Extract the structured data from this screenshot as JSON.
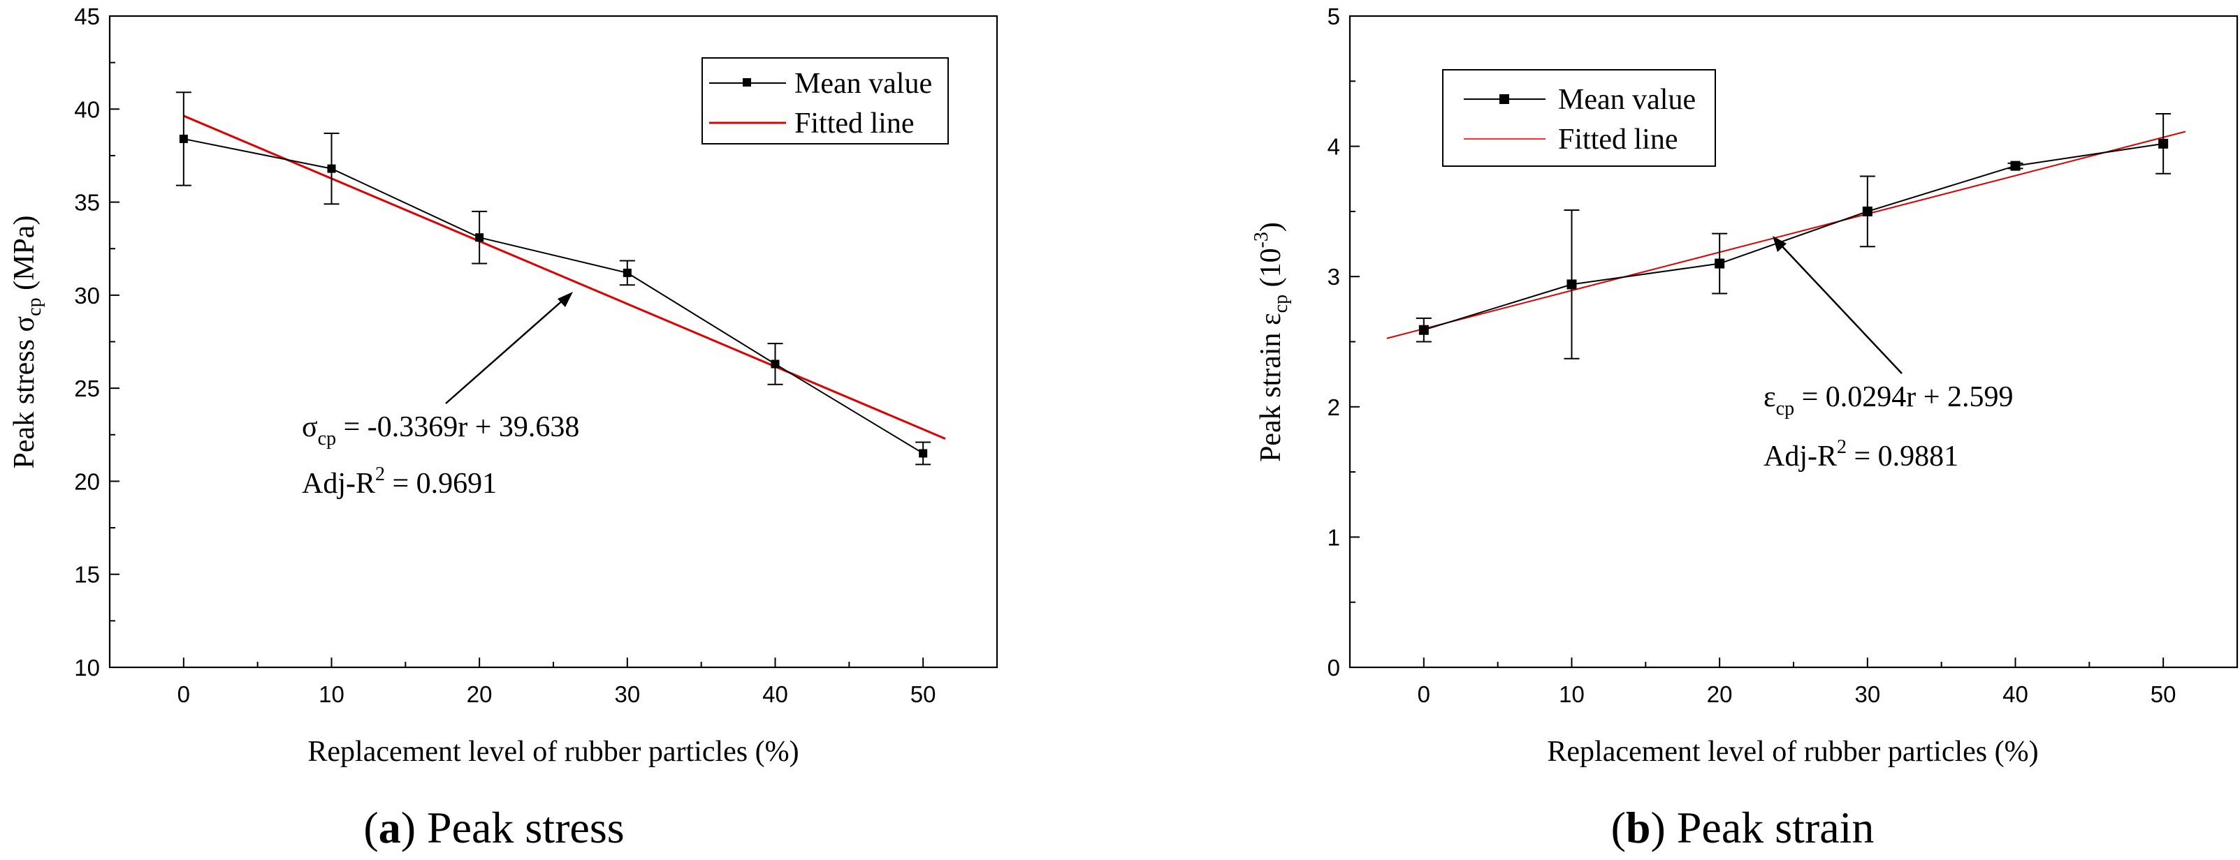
{
  "chart_data": [
    {
      "type": "line",
      "id": "a",
      "caption_letter": "a",
      "caption_text": "Peak stress",
      "xlabel": "Replacement level of rubber particles (%)",
      "ylabel_prefix": "Peak stress σ",
      "ylabel_sub": "cp",
      "ylabel_suffix": " (MPa)",
      "xlim": [
        -5,
        55
      ],
      "ylim": [
        10,
        45
      ],
      "x_ticks": [
        0,
        10,
        20,
        30,
        40,
        50
      ],
      "y_ticks": [
        10,
        15,
        20,
        25,
        30,
        35,
        40,
        45
      ],
      "legend": [
        "Mean value",
        "Fitted line"
      ],
      "series": [
        {
          "name": "Mean value",
          "x": [
            0,
            10,
            20,
            30,
            40,
            50
          ],
          "y": [
            38.4,
            36.8,
            33.1,
            31.2,
            26.3,
            21.5
          ],
          "err": [
            2.5,
            1.9,
            1.4,
            0.65,
            1.1,
            0.6
          ]
        }
      ],
      "fit": {
        "slope": -0.3369,
        "intercept": 39.638,
        "x_range": [
          0,
          51.5
        ],
        "color": "#e00000"
      },
      "equation": {
        "lhs": "σ",
        "sub": "cp",
        "rhs": " = -0.3369r + 39.638",
        "r2_prefix": "Adj-R",
        "r2_sup": "2",
        "r2_value": " = 0.9691"
      }
    },
    {
      "type": "line",
      "id": "b",
      "caption_letter": "b",
      "caption_text": "Peak strain",
      "xlabel": "Replacement level of rubber particles (%)",
      "ylabel_prefix": "Peak strain ε",
      "ylabel_sub": "cp",
      "ylabel_suffix": "  (10",
      "ylabel_sup": "-3",
      "ylabel_end": ")",
      "xlim": [
        -5,
        55
      ],
      "ylim": [
        0,
        5
      ],
      "x_ticks": [
        0,
        10,
        20,
        30,
        40,
        50
      ],
      "y_ticks": [
        0,
        1,
        2,
        3,
        4,
        5
      ],
      "legend": [
        "Mean value",
        "Fitted line"
      ],
      "series": [
        {
          "name": "Mean value",
          "x": [
            0,
            10,
            20,
            30,
            40,
            50
          ],
          "y": [
            2.59,
            2.94,
            3.1,
            3.5,
            3.85,
            4.02
          ],
          "err": [
            0.09,
            0.57,
            0.23,
            0.27,
            0.02,
            0.23
          ]
        }
      ],
      "fit": {
        "slope": 0.0294,
        "intercept": 2.599,
        "x_range": [
          -2.5,
          51.5
        ],
        "color": "#ff3030"
      },
      "equation": {
        "lhs": "ε",
        "sub": "cp",
        "rhs": " = 0.0294r + 2.599",
        "r2_prefix": "Adj-R",
        "r2_sup": "2",
        "r2_value": " = 0.9881"
      }
    }
  ]
}
